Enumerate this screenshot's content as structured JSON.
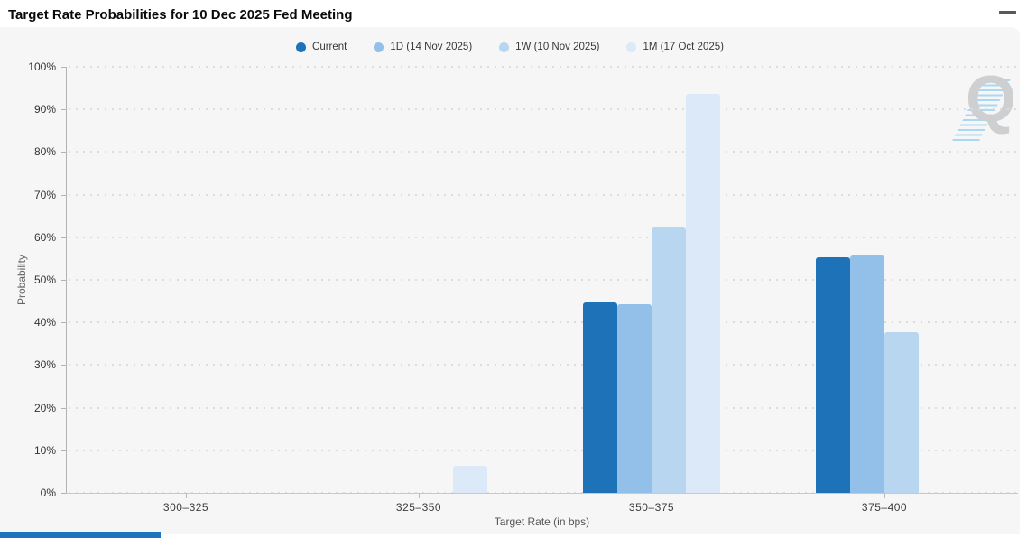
{
  "header": {
    "title": "Target Rate Probabilities for 10 Dec 2025 Fed Meeting",
    "menu_icon": "hamburger-menu-icon"
  },
  "legend": [
    {
      "label": "Current",
      "color": "#1e73b8"
    },
    {
      "label": "1D (14 Nov 2025)",
      "color": "#92c0e9"
    },
    {
      "label": "1W (10 Nov 2025)",
      "color": "#b8d6ef"
    },
    {
      "label": "1M (17 Oct 2025)",
      "color": "#dbe9f8"
    }
  ],
  "chart_data": {
    "type": "bar",
    "title": "Target Rate Probabilities for 10 Dec 2025 Fed Meeting",
    "categories": [
      "300–325",
      "325–350",
      "350–375",
      "375–400"
    ],
    "series": [
      {
        "name": "Current",
        "color": "#1e73b8",
        "values": [
          0,
          0,
          44.7,
          55.3
        ]
      },
      {
        "name": "1D (14 Nov 2025)",
        "color": "#92c0e9",
        "values": [
          0,
          0,
          44.3,
          55.7
        ]
      },
      {
        "name": "1W (10 Nov 2025)",
        "color": "#b8d6ef",
        "values": [
          0,
          0,
          62.3,
          37.7
        ]
      },
      {
        "name": "1M (17 Oct 2025)",
        "color": "#dbe9f8",
        "values": [
          0,
          6.3,
          93.7,
          0
        ]
      }
    ],
    "xlabel": "Target Rate (in bps)",
    "ylabel": "Probability",
    "ylim": [
      0,
      100
    ],
    "ytick_step": 10,
    "ytick_labels": [
      "0%",
      "10%",
      "20%",
      "30%",
      "40%",
      "50%",
      "60%",
      "70%",
      "80%",
      "90%",
      "100%"
    ],
    "grid": "dotted-horizontal",
    "legend_position": "top-center"
  },
  "watermark": {
    "letter": "Q",
    "name": "quikstrike-logo"
  },
  "colors": {
    "panel_background": "#f6f6f6",
    "page_background": "#ffffff",
    "bottom_accent_bar": "#1e73be"
  }
}
